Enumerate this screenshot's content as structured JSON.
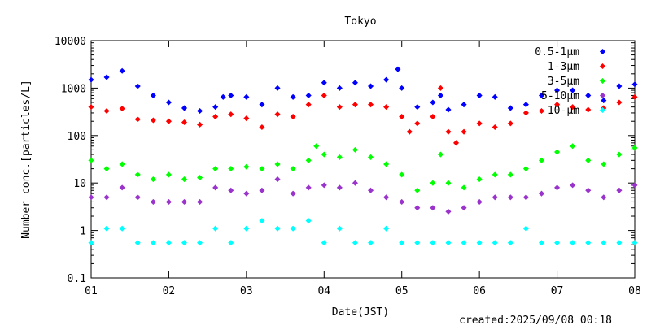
{
  "chart_data": {
    "type": "scatter",
    "title": "Tokyo",
    "xlabel": "Date(JST)",
    "ylabel": "Number conc.[particles/L]",
    "x_ticks": [
      "01",
      "02",
      "03",
      "04",
      "05",
      "06",
      "07",
      "08"
    ],
    "xlim": [
      1,
      8
    ],
    "y_scale": "log",
    "ylim": [
      0.1,
      10000
    ],
    "y_ticks": [
      "0.1",
      "1",
      "10",
      "100",
      "1000",
      "10000"
    ],
    "legend_position": "top-right",
    "grid": false,
    "footer": "created:2025/09/08 00:18",
    "series": [
      {
        "name": "0.5-1μm",
        "color": "#0000ff",
        "x": [
          1.0,
          1.2,
          1.4,
          1.6,
          1.8,
          2.0,
          2.2,
          2.4,
          2.6,
          2.7,
          2.8,
          3.0,
          3.2,
          3.4,
          3.6,
          3.8,
          4.0,
          4.2,
          4.4,
          4.6,
          4.8,
          4.95,
          5.0,
          5.2,
          5.4,
          5.5,
          5.6,
          5.8,
          6.0,
          6.2,
          6.4,
          6.6,
          6.8,
          7.0,
          7.2,
          7.4,
          7.6,
          7.8,
          8.0
        ],
        "y": [
          1500,
          1700,
          2300,
          1100,
          700,
          500,
          380,
          330,
          400,
          650,
          700,
          650,
          450,
          1000,
          650,
          700,
          1300,
          1000,
          1300,
          1100,
          1500,
          2500,
          1000,
          400,
          500,
          700,
          350,
          450,
          700,
          650,
          380,
          450,
          700,
          900,
          900,
          700,
          550,
          1100,
          1200
        ]
      },
      {
        "name": "1-3μm",
        "color": "#ff0000",
        "x": [
          1.0,
          1.2,
          1.4,
          1.6,
          1.8,
          2.0,
          2.2,
          2.4,
          2.6,
          2.8,
          3.0,
          3.2,
          3.4,
          3.6,
          3.8,
          4.0,
          4.2,
          4.4,
          4.6,
          4.8,
          5.0,
          5.1,
          5.2,
          5.4,
          5.5,
          5.6,
          5.7,
          5.8,
          6.0,
          6.2,
          6.4,
          6.6,
          6.8,
          7.0,
          7.2,
          7.4,
          7.6,
          7.8,
          8.0
        ],
        "y": [
          400,
          330,
          370,
          220,
          210,
          200,
          190,
          170,
          250,
          280,
          230,
          150,
          280,
          250,
          450,
          700,
          400,
          450,
          450,
          400,
          250,
          120,
          180,
          250,
          1000,
          120,
          70,
          120,
          180,
          150,
          180,
          300,
          330,
          450,
          400,
          350,
          380,
          500,
          650
        ]
      },
      {
        "name": "3-5μm",
        "color": "#00ff00",
        "x": [
          1.0,
          1.2,
          1.4,
          1.6,
          1.8,
          2.0,
          2.2,
          2.4,
          2.6,
          2.8,
          3.0,
          3.2,
          3.4,
          3.6,
          3.8,
          3.9,
          4.0,
          4.2,
          4.4,
          4.6,
          4.8,
          5.0,
          5.2,
          5.4,
          5.5,
          5.6,
          5.8,
          6.0,
          6.2,
          6.4,
          6.6,
          6.8,
          7.0,
          7.2,
          7.4,
          7.6,
          7.8,
          8.0
        ],
        "y": [
          30,
          20,
          25,
          15,
          12,
          15,
          12,
          13,
          20,
          20,
          22,
          20,
          25,
          20,
          30,
          60,
          40,
          35,
          50,
          35,
          25,
          15,
          7,
          10,
          40,
          10,
          8,
          12,
          15,
          15,
          20,
          30,
          45,
          60,
          30,
          25,
          40,
          55
        ]
      },
      {
        "name": "5-10μm",
        "color": "#9933cc",
        "x": [
          1.0,
          1.2,
          1.4,
          1.6,
          1.8,
          2.0,
          2.2,
          2.4,
          2.6,
          2.8,
          3.0,
          3.2,
          3.4,
          3.6,
          3.8,
          4.0,
          4.2,
          4.4,
          4.6,
          4.8,
          5.0,
          5.2,
          5.4,
          5.6,
          5.8,
          6.0,
          6.2,
          6.4,
          6.6,
          6.8,
          7.0,
          7.2,
          7.4,
          7.6,
          7.8,
          8.0
        ],
        "y": [
          5,
          5,
          8,
          5,
          4,
          4,
          4,
          4,
          8,
          7,
          6,
          7,
          12,
          6,
          8,
          9,
          8,
          10,
          7,
          5,
          4,
          3,
          3,
          2.5,
          3,
          4,
          5,
          5,
          5,
          6,
          8,
          9,
          7,
          5,
          7,
          9
        ]
      },
      {
        "name": "10-μm",
        "color": "#00ffff",
        "x": [
          1.0,
          1.2,
          1.4,
          1.6,
          1.8,
          2.0,
          2.2,
          2.4,
          2.6,
          2.8,
          3.0,
          3.2,
          3.4,
          3.6,
          3.8,
          4.0,
          4.2,
          4.4,
          4.6,
          4.8,
          5.0,
          5.2,
          5.4,
          5.6,
          5.8,
          6.0,
          6.2,
          6.4,
          6.6,
          6.8,
          7.0,
          7.2,
          7.4,
          7.6,
          7.8,
          8.0
        ],
        "y": [
          0.55,
          1.1,
          1.1,
          0.55,
          0.55,
          0.55,
          0.55,
          0.55,
          1.1,
          0.55,
          1.1,
          1.6,
          1.1,
          1.1,
          1.6,
          0.55,
          1.1,
          0.55,
          0.55,
          1.1,
          0.55,
          0.55,
          0.55,
          0.55,
          0.55,
          0.55,
          0.55,
          0.55,
          1.1,
          0.55,
          0.55,
          0.55,
          0.55,
          0.55,
          0.55,
          0.55
        ]
      }
    ]
  }
}
